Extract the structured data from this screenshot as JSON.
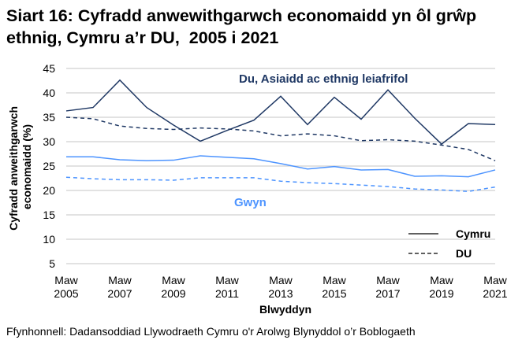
{
  "chart_data": {
    "type": "line",
    "title": "Siart 16: Cyfradd anwewithgarwch economaidd yn ôl grŵp ethnig, Cymru a’r DU,  2005 i 2021",
    "xlabel": "Blwyddyn",
    "ylabel": "Cyfradd anweithgarwch economaidd (%)",
    "ylim": [
      5,
      45
    ],
    "yticks": [
      5,
      10,
      15,
      20,
      25,
      30,
      35,
      40,
      45
    ],
    "grid": true,
    "x": [
      2005,
      2006,
      2007,
      2008,
      2009,
      2010,
      2011,
      2012,
      2013,
      2014,
      2015,
      2016,
      2017,
      2018,
      2019,
      2020,
      2021
    ],
    "xtick_labels": [
      [
        "Maw",
        "2005"
      ],
      [
        "Maw",
        "2007"
      ],
      [
        "Maw",
        "2009"
      ],
      [
        "Maw",
        "2011"
      ],
      [
        "Maw",
        "2013"
      ],
      [
        "Maw",
        "2015"
      ],
      [
        "Maw",
        "2017"
      ],
      [
        "Maw",
        "2019"
      ],
      [
        "Maw",
        "2021"
      ]
    ],
    "xtick_years": [
      2005,
      2007,
      2009,
      2011,
      2013,
      2015,
      2017,
      2019,
      2021
    ],
    "series": [
      {
        "group": "Du, Asiaidd ac ethnig leiafrifol",
        "area": "Cymru",
        "color": "#1f3864",
        "dash": false,
        "values": [
          36.3,
          37.0,
          42.6,
          37.0,
          33.4,
          30.1,
          32.3,
          34.4,
          39.3,
          33.5,
          39.1,
          34.6,
          40.6,
          34.8,
          29.5,
          33.7,
          33.5
        ]
      },
      {
        "group": "Du, Asiaidd ac ethnig leiafrifol",
        "area": "DU",
        "color": "#1f3864",
        "dash": true,
        "values": [
          35.0,
          34.7,
          33.2,
          32.7,
          32.5,
          32.8,
          32.6,
          32.2,
          31.2,
          31.6,
          31.2,
          30.2,
          30.4,
          30.1,
          29.3,
          28.4,
          26.1
        ]
      },
      {
        "group": "Gwyn",
        "area": "Cymru",
        "color": "#4d94ff",
        "dash": false,
        "values": [
          26.9,
          26.9,
          26.3,
          26.1,
          26.2,
          27.1,
          26.8,
          26.5,
          25.5,
          24.4,
          24.9,
          24.2,
          24.3,
          22.9,
          23.0,
          22.8,
          24.2
        ]
      },
      {
        "group": "Gwyn",
        "area": "DU",
        "color": "#4d94ff",
        "dash": true,
        "values": [
          22.7,
          22.4,
          22.2,
          22.2,
          22.1,
          22.6,
          22.6,
          22.6,
          21.9,
          21.6,
          21.4,
          21.1,
          20.8,
          20.3,
          20.1,
          19.8,
          20.7
        ]
      }
    ],
    "annotations": {
      "bme": "Du, Asiaidd ac ethnig leiafrifol",
      "white": "Gwyn"
    },
    "legend": {
      "position": "bottom-right",
      "items": [
        {
          "label": "Cymru",
          "dash": false
        },
        {
          "label": "DU",
          "dash": true
        }
      ]
    }
  },
  "ylabel_lines": [
    "Cyfradd anweithgarwch",
    "economaidd (%)"
  ],
  "source": "Ffynhonnell: Dadansoddiad Llywodraeth Cymru o'r Arolwg Blynyddol o’r Boblogaeth"
}
